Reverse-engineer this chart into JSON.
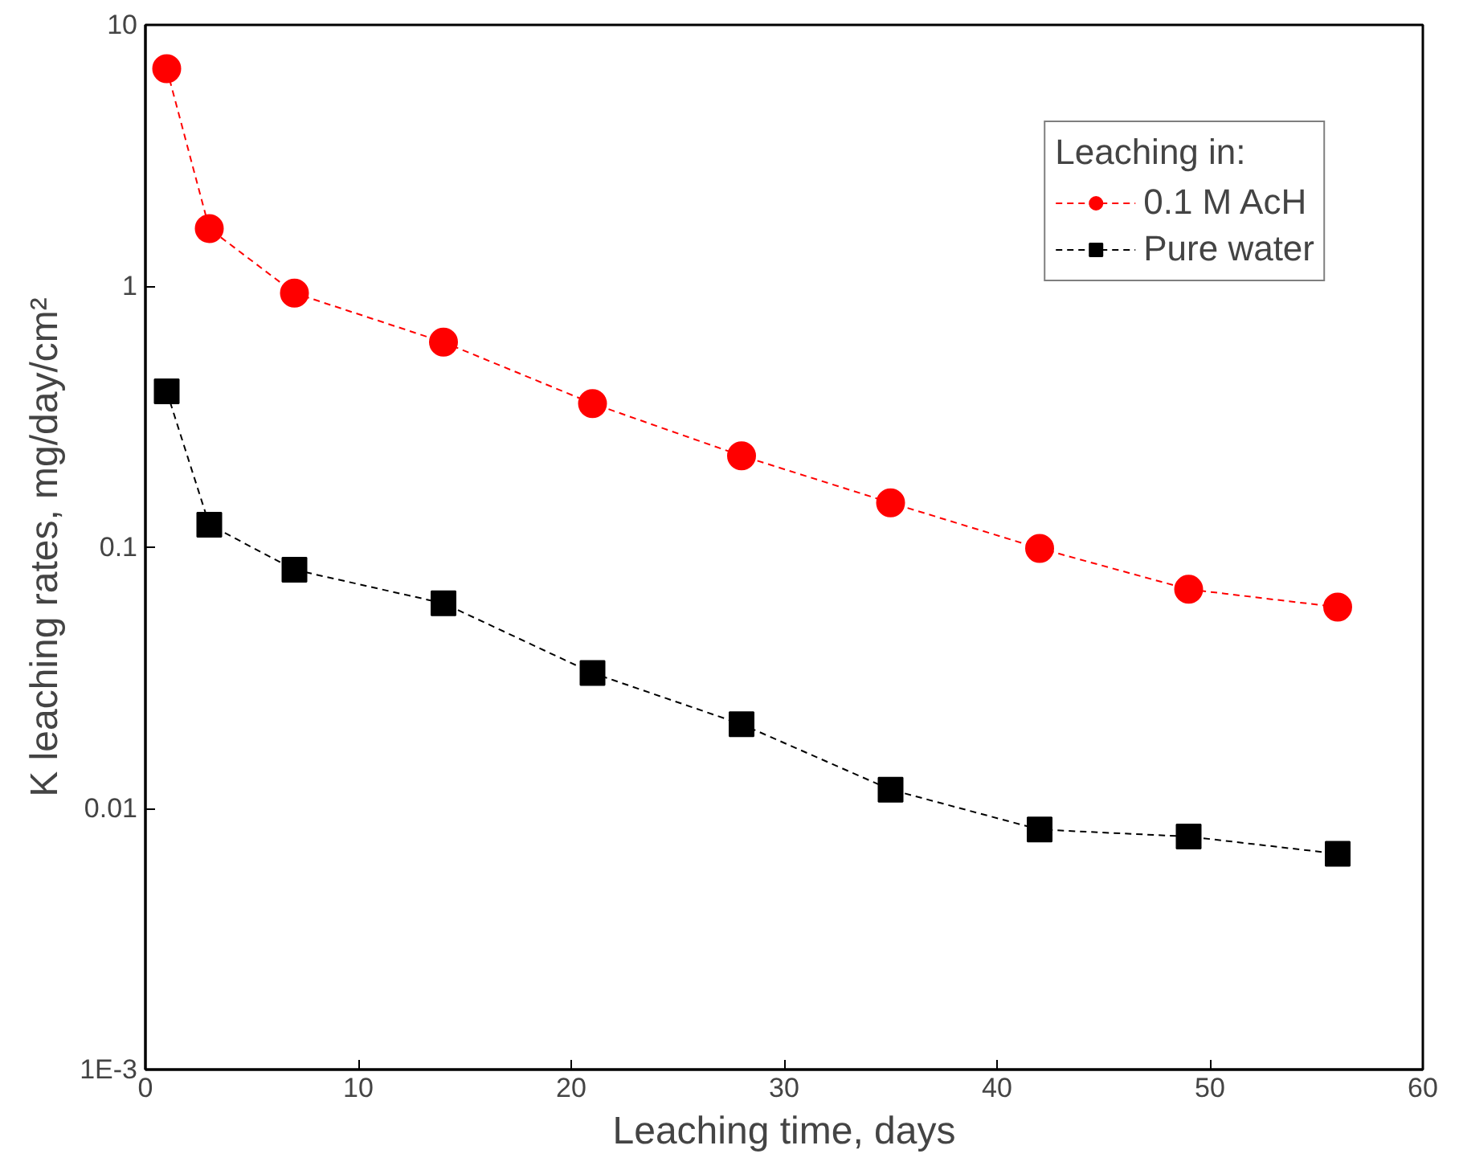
{
  "chart_data": {
    "type": "line",
    "xlabel": "Leaching time, days",
    "ylabel": "K leaching rates, mg/day/cm²",
    "legend_title": "Leaching in:",
    "log": "y",
    "grid": false,
    "legend": "top right",
    "line_style": "dashed",
    "x": [
      1,
      3,
      7,
      14,
      21,
      28,
      35,
      42,
      49,
      56
    ],
    "xlim": [
      0,
      60
    ],
    "xticks": [
      0,
      10,
      20,
      30,
      40,
      50,
      60
    ],
    "ylim": [
      0.001,
      10
    ],
    "yticks": [
      {
        "value": 0.001,
        "label": "1E-3"
      },
      0.01,
      0.1,
      1,
      10
    ],
    "series": [
      {
        "name": "0.1 M AcH",
        "color": "#ff0000",
        "marker": "circle",
        "values": [
          6.8,
          1.66,
          0.94,
          0.61,
          0.355,
          0.224,
          0.148,
          0.099,
          0.069,
          0.059
        ]
      },
      {
        "name": "Pure water",
        "color": "#000000",
        "marker": "square",
        "values": [
          0.395,
          0.122,
          0.082,
          0.061,
          0.033,
          0.021,
          0.0118,
          0.0083,
          0.0078,
          0.0067
        ]
      }
    ]
  }
}
